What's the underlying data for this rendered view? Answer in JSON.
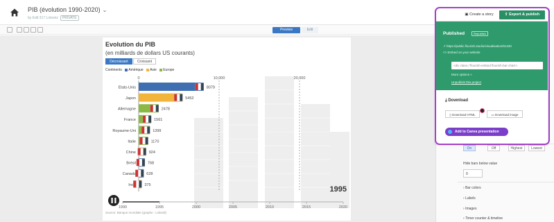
{
  "header": {
    "title": "PIB (évolution 1990-2020)",
    "subtitle": "by Edit 317 Lotsonz",
    "tag": "PRIVATE"
  },
  "toolbar": {
    "preview_label": "Preview",
    "edit_label": "Edit"
  },
  "chart": {
    "title": "Evolution du PIB",
    "subtitle": "(en milliards de dollars US courants)",
    "sort_desc_label": "Décroissant",
    "sort_asc_label": "Croissant",
    "legend_title": "Continents",
    "legend": [
      {
        "label": "Amérique",
        "color": "#3f6fb0"
      },
      {
        "label": "Asie",
        "color": "#f0b53a"
      },
      {
        "label": "Europe",
        "color": "#8aba45"
      }
    ],
    "year_label": "1995",
    "source": "Source: Banque mondiale (graphe : Linkedi)"
  },
  "chart_data": {
    "type": "bar",
    "title": "Evolution du PIB",
    "subtitle": "(en milliards de dollars US courants)",
    "top_ticks": [
      "0",
      "10,000",
      "20,000"
    ],
    "top_tick_values": [
      0,
      10000,
      20000
    ],
    "xlim": [
      0,
      25000
    ],
    "categories": [
      "Etats-Unis",
      "Japon",
      "Allemagne",
      "France",
      "Royaume-Uni",
      "Italie",
      "Chine",
      "Brésil",
      "Canada",
      "Inde"
    ],
    "values": [
      8079,
      5452,
      2478,
      1561,
      1399,
      1170,
      924,
      768,
      628,
      375
    ],
    "value_labels": [
      "8079",
      "5452",
      "2478",
      "1561",
      "1399",
      "1170",
      "924",
      "768",
      "628",
      "375"
    ],
    "bar_colors": [
      "#3f6fb0",
      "#f0b53a",
      "#8aba45",
      "#8aba45",
      "#8aba45",
      "#8aba45",
      "#f0b53a",
      "#3f6fb0",
      "#3f6fb0",
      "#f0b53a"
    ],
    "timeline_ticks": [
      "1990",
      "1995",
      "2000",
      "2005",
      "2010",
      "2015",
      "2020"
    ],
    "timeline_range": [
      1990,
      2020
    ],
    "timeline_value": 1995,
    "play_state": "paused"
  },
  "export_panel": {
    "story_label": "Create a story",
    "export_label": "Export & publish",
    "published_label": "Published",
    "published_tag": "Republish",
    "url_text": "https://public.flourish.studio/visualisation/91430",
    "embed_label": "Embed on your website",
    "embed_code": "<div class=\"flourish-embed flourish-bar-chart-r",
    "more_options": "More options »",
    "unpublish": "Unpublish this project",
    "download_label": "Download",
    "download_html": "Download HTML",
    "download_image": "Download image",
    "canva_label": "Add to Canva presentation"
  },
  "settings_panel": {
    "options": [
      "On",
      "Off",
      "Highest",
      "Lowest"
    ],
    "selected": "On",
    "hide_label": "Hide bars below value",
    "hide_value": "0",
    "sections": [
      "Bar colors",
      "Labels",
      "Images",
      "Timer counter & timeline"
    ]
  }
}
